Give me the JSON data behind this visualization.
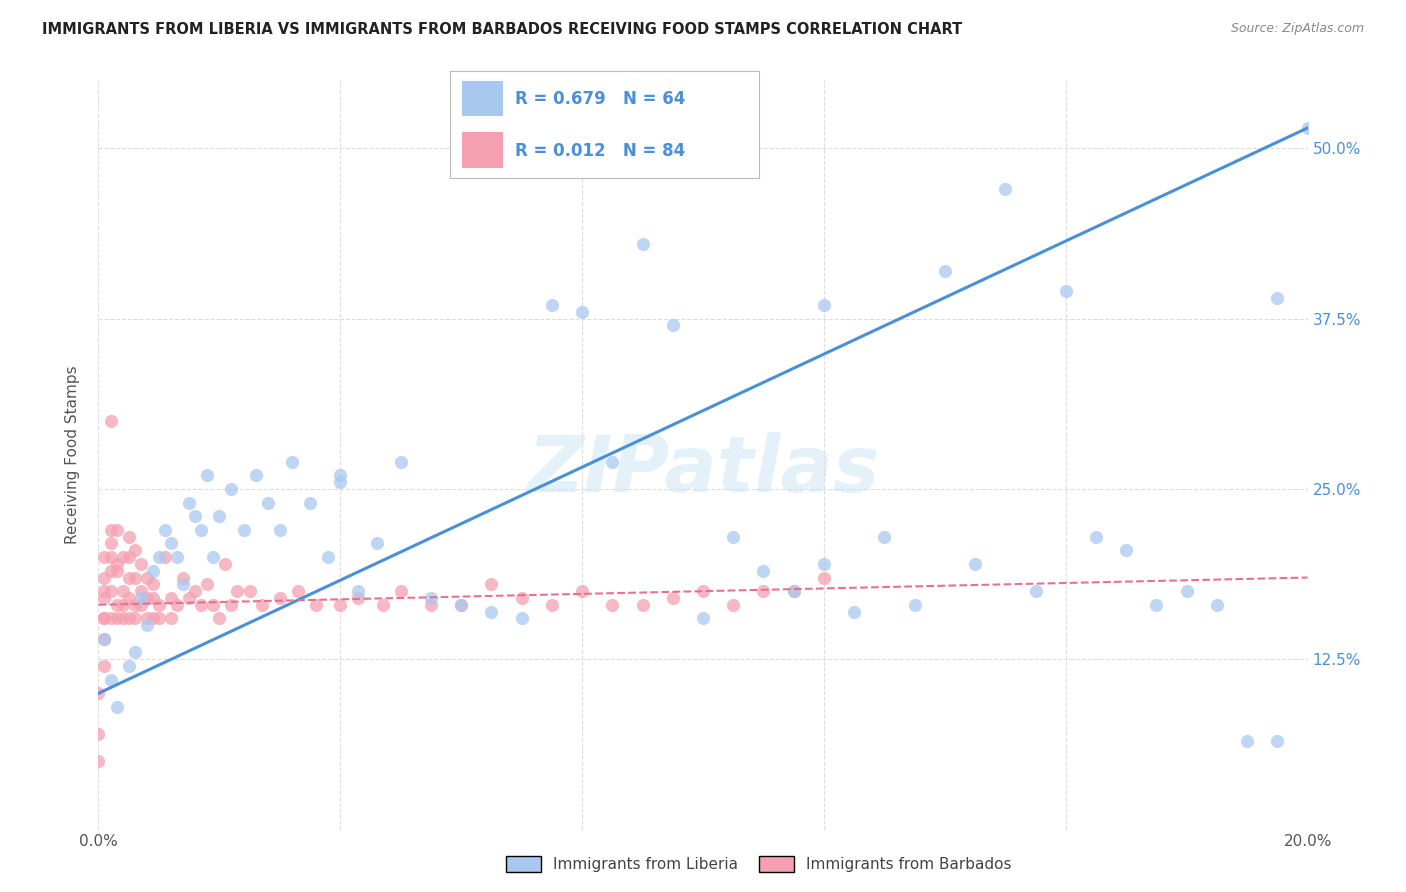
{
  "title": "IMMIGRANTS FROM LIBERIA VS IMMIGRANTS FROM BARBADOS RECEIVING FOOD STAMPS CORRELATION CHART",
  "source": "Source: ZipAtlas.com",
  "xlabel_liberia": "Immigrants from Liberia",
  "xlabel_barbados": "Immigrants from Barbados",
  "ylabel": "Receiving Food Stamps",
  "watermark": "ZIPatlas",
  "xlim": [
    0.0,
    0.2
  ],
  "ylim": [
    0.0,
    0.55
  ],
  "yticks": [
    0.0,
    0.125,
    0.25,
    0.375,
    0.5
  ],
  "ytick_labels": [
    "",
    "12.5%",
    "25.0%",
    "37.5%",
    "50.0%"
  ],
  "xticks": [
    0.0,
    0.04,
    0.08,
    0.12,
    0.16,
    0.2
  ],
  "xtick_labels": [
    "0.0%",
    "",
    "",
    "",
    "",
    "20.0%"
  ],
  "liberia_R": 0.679,
  "liberia_N": 64,
  "barbados_R": 0.012,
  "barbados_N": 84,
  "liberia_color": "#a8c8f0",
  "barbados_color": "#f5a0b0",
  "line_liberia_color": "#4a90d9",
  "line_barbados_color": "#e87090",
  "background_color": "#ffffff",
  "grid_color": "#dddddd",
  "title_color": "#222222",
  "legend_text_color": "#4a90d9",
  "line_lib_x0": 0.0,
  "line_lib_y0": 0.1,
  "line_lib_x1": 0.2,
  "line_lib_y1": 0.515,
  "line_bar_x0": 0.0,
  "line_bar_y0": 0.165,
  "line_bar_x1": 0.2,
  "line_bar_y1": 0.185,
  "liberia_x": [
    0.001,
    0.002,
    0.003,
    0.005,
    0.006,
    0.007,
    0.008,
    0.009,
    0.01,
    0.011,
    0.012,
    0.013,
    0.014,
    0.015,
    0.016,
    0.017,
    0.018,
    0.019,
    0.02,
    0.022,
    0.024,
    0.026,
    0.028,
    0.03,
    0.032,
    0.035,
    0.038,
    0.04,
    0.043,
    0.046,
    0.05,
    0.055,
    0.06,
    0.065,
    0.07,
    0.075,
    0.08,
    0.085,
    0.09,
    0.095,
    0.1,
    0.105,
    0.11,
    0.115,
    0.12,
    0.125,
    0.13,
    0.135,
    0.14,
    0.145,
    0.15,
    0.155,
    0.16,
    0.165,
    0.17,
    0.175,
    0.18,
    0.185,
    0.19,
    0.195,
    0.04,
    0.12,
    0.195,
    0.2
  ],
  "liberia_y": [
    0.14,
    0.11,
    0.09,
    0.12,
    0.13,
    0.17,
    0.15,
    0.19,
    0.2,
    0.22,
    0.21,
    0.2,
    0.18,
    0.24,
    0.23,
    0.22,
    0.26,
    0.2,
    0.23,
    0.25,
    0.22,
    0.26,
    0.24,
    0.22,
    0.27,
    0.24,
    0.2,
    0.26,
    0.175,
    0.21,
    0.27,
    0.17,
    0.165,
    0.16,
    0.155,
    0.385,
    0.38,
    0.27,
    0.43,
    0.37,
    0.155,
    0.215,
    0.19,
    0.175,
    0.195,
    0.16,
    0.215,
    0.165,
    0.41,
    0.195,
    0.47,
    0.175,
    0.395,
    0.215,
    0.205,
    0.165,
    0.175,
    0.165,
    0.065,
    0.39,
    0.255,
    0.385,
    0.065,
    0.515
  ],
  "barbados_x": [
    0.0,
    0.0,
    0.0,
    0.001,
    0.001,
    0.001,
    0.001,
    0.001,
    0.001,
    0.001,
    0.001,
    0.002,
    0.002,
    0.002,
    0.002,
    0.002,
    0.002,
    0.002,
    0.003,
    0.003,
    0.003,
    0.003,
    0.003,
    0.004,
    0.004,
    0.004,
    0.004,
    0.005,
    0.005,
    0.005,
    0.005,
    0.005,
    0.006,
    0.006,
    0.006,
    0.006,
    0.007,
    0.007,
    0.007,
    0.008,
    0.008,
    0.008,
    0.009,
    0.009,
    0.009,
    0.01,
    0.01,
    0.011,
    0.012,
    0.012,
    0.013,
    0.014,
    0.015,
    0.016,
    0.017,
    0.018,
    0.019,
    0.02,
    0.021,
    0.022,
    0.023,
    0.025,
    0.027,
    0.03,
    0.033,
    0.036,
    0.04,
    0.043,
    0.047,
    0.05,
    0.055,
    0.06,
    0.065,
    0.07,
    0.075,
    0.08,
    0.085,
    0.09,
    0.095,
    0.1,
    0.105,
    0.11,
    0.115,
    0.12
  ],
  "barbados_y": [
    0.05,
    0.07,
    0.1,
    0.12,
    0.14,
    0.155,
    0.17,
    0.155,
    0.175,
    0.185,
    0.2,
    0.155,
    0.175,
    0.19,
    0.21,
    0.2,
    0.22,
    0.3,
    0.155,
    0.165,
    0.19,
    0.22,
    0.195,
    0.155,
    0.165,
    0.175,
    0.2,
    0.155,
    0.17,
    0.185,
    0.2,
    0.215,
    0.155,
    0.165,
    0.185,
    0.205,
    0.165,
    0.175,
    0.195,
    0.155,
    0.17,
    0.185,
    0.155,
    0.17,
    0.18,
    0.155,
    0.165,
    0.2,
    0.155,
    0.17,
    0.165,
    0.185,
    0.17,
    0.175,
    0.165,
    0.18,
    0.165,
    0.155,
    0.195,
    0.165,
    0.175,
    0.175,
    0.165,
    0.17,
    0.175,
    0.165,
    0.165,
    0.17,
    0.165,
    0.175,
    0.165,
    0.165,
    0.18,
    0.17,
    0.165,
    0.175,
    0.165,
    0.165,
    0.17,
    0.175,
    0.165,
    0.175,
    0.175,
    0.185
  ]
}
